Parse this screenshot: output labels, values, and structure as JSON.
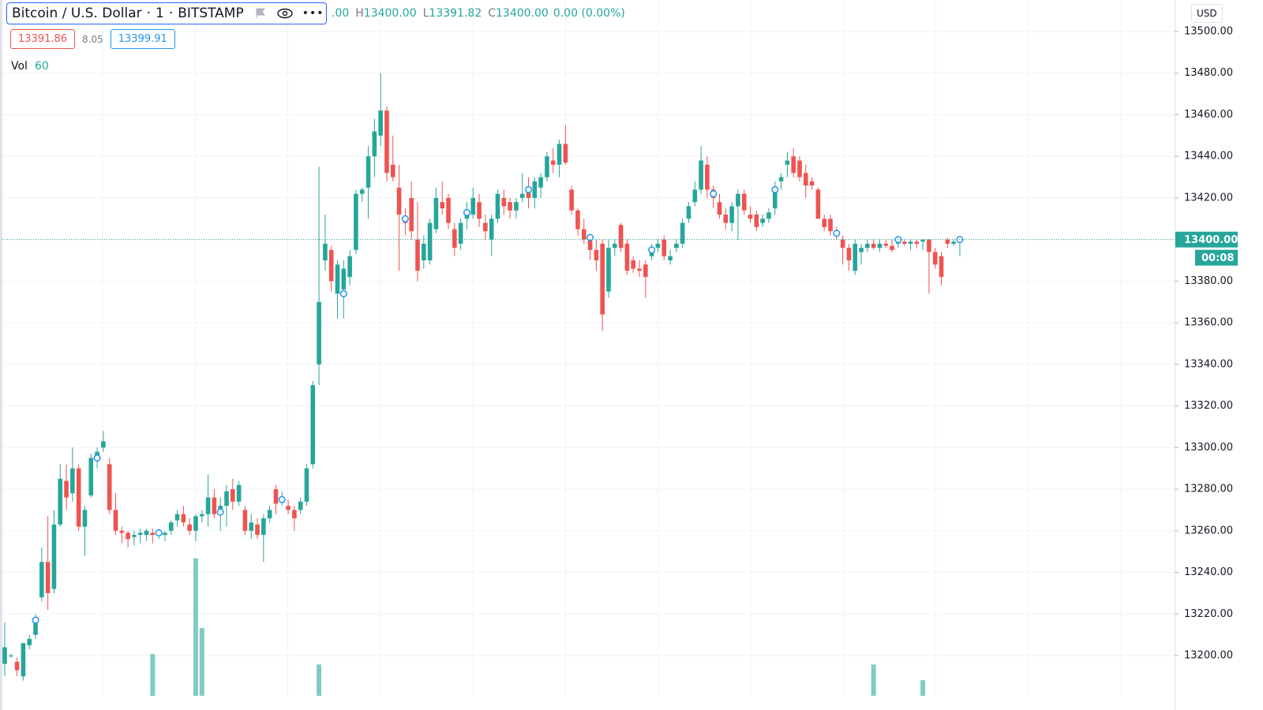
{
  "chart_data": {
    "type": "candlestick",
    "title": "Bitcoin / U.S. Dollar",
    "interval": "1",
    "exchange": "BITSTAMP",
    "legend": {
      "open_fragment": ".00",
      "high_label": "H",
      "high": "13400.00",
      "low_label": "L",
      "low": "13391.82",
      "close_label": "C",
      "close": "13400.00",
      "change": "0.00 (0.00%)"
    },
    "bid": "13391.86",
    "spread": "8.05",
    "ask": "13399.91",
    "volume_label": "Vol",
    "volume_value": "60",
    "currency": "USD",
    "up_color": "#26a69a",
    "down_color": "#ef5350",
    "volume_color": "#80cbc4",
    "marker_color": "#2196f3",
    "open": [
      13196,
      13200,
      13197,
      13190,
      13205,
      13210,
      13228,
      13245,
      13232,
      13263,
      13284,
      13278,
      13290,
      13262,
      13277,
      13294,
      13300,
      13292,
      13270,
      13260,
      13259,
      13257,
      13258,
      13258,
      13259,
      13258,
      13258,
      13260,
      13265,
      13268,
      13263,
      13260,
      13267,
      13268,
      13276,
      13268,
      13272,
      13280,
      13274,
      13270,
      13260,
      13263,
      13258,
      13266,
      13280,
      13275,
      13272,
      13270,
      13270,
      13274,
      13292,
      13340,
      13390,
      13395,
      13374,
      13376,
      13382,
      13395,
      13422,
      13425,
      13440,
      13450,
      13462,
      13436,
      13425,
      13410,
      13420,
      13400,
      13390,
      13390,
      13405,
      13418,
      13420,
      13405,
      13398,
      13410,
      13412,
      13418,
      13408,
      13400,
      13410,
      13420,
      13418,
      13414,
      13420,
      13424,
      13420,
      13425,
      13430,
      13438,
      13436,
      13446,
      13424,
      13414,
      13405,
      13400,
      13395,
      13398,
      13375,
      13396,
      13407,
      13398,
      13390,
      13386,
      13388,
      13392,
      13396,
      13400,
      13390,
      13396,
      13398,
      13410,
      13418,
      13424,
      13436,
      13424,
      13418,
      13412,
      13408,
      13416,
      13422,
      13412,
      13412,
      13408,
      13410,
      13415,
      13428,
      13436,
      13440,
      13438,
      13432,
      13428,
      13424,
      13410,
      13410,
      13404,
      13400,
      13396,
      13385,
      13394,
      13396,
      13398,
      13396,
      13398,
      13397,
      13398,
      13399,
      13398,
      13399,
      13399,
      13400,
      13394,
      13392,
      13400,
      13398,
      13399
    ],
    "high": [
      13216,
      13201,
      13199,
      13206,
      13210,
      13220,
      13252,
      13267,
      13270,
      13292,
      13292,
      13300,
      13292,
      13272,
      13297,
      13300,
      13308,
      13295,
      13278,
      13262,
      13260,
      13260,
      13261,
      13261,
      13261,
      13261,
      13260,
      13265,
      13270,
      13272,
      13266,
      13268,
      13270,
      13287,
      13280,
      13276,
      13282,
      13285,
      13284,
      13272,
      13268,
      13266,
      13268,
      13272,
      13282,
      13279,
      13275,
      13272,
      13276,
      13292,
      13332,
      13435,
      13412,
      13397,
      13390,
      13390,
      13395,
      13424,
      13425,
      13445,
      13458,
      13480,
      13464,
      13450,
      13436,
      13415,
      13428,
      13418,
      13402,
      13410,
      13425,
      13428,
      13422,
      13408,
      13410,
      13418,
      13425,
      13422,
      13412,
      13412,
      13424,
      13424,
      13420,
      13420,
      13432,
      13430,
      13430,
      13432,
      13442,
      13444,
      13448,
      13455,
      13426,
      13415,
      13410,
      13402,
      13400,
      13400,
      13400,
      13400,
      13408,
      13400,
      13392,
      13390,
      13390,
      13398,
      13400,
      13402,
      13395,
      13400,
      13410,
      13418,
      13428,
      13445,
      13440,
      13426,
      13422,
      13415,
      13418,
      13424,
      13424,
      13416,
      13414,
      13412,
      13415,
      13428,
      13432,
      13442,
      13444,
      13440,
      13436,
      13430,
      13425,
      13412,
      13412,
      13406,
      13402,
      13398,
      13400,
      13398,
      13400,
      13400,
      13400,
      13400,
      13400,
      13400,
      13400,
      13400,
      13400,
      13400,
      13400,
      13396,
      13394,
      13401,
      13400,
      13400
    ],
    "low": [
      13190,
      13199,
      13190,
      13188,
      13203,
      13208,
      13226,
      13222,
      13230,
      13262,
      13270,
      13274,
      13260,
      13248,
      13276,
      13290,
      13298,
      13268,
      13258,
      13254,
      13252,
      13253,
      13254,
      13255,
      13254,
      13256,
      13255,
      13258,
      13262,
      13262,
      13258,
      13255,
      13264,
      13262,
      13266,
      13260,
      13262,
      13270,
      13272,
      13258,
      13256,
      13256,
      13245,
      13264,
      13268,
      13272,
      13268,
      13260,
      13268,
      13272,
      13290,
      13330,
      13385,
      13375,
      13362,
      13362,
      13378,
      13393,
      13418,
      13410,
      13430,
      13445,
      13428,
      13428,
      13385,
      13402,
      13400,
      13380,
      13386,
      13388,
      13403,
      13412,
      13405,
      13392,
      13395,
      13405,
      13410,
      13406,
      13400,
      13392,
      13408,
      13412,
      13410,
      13410,
      13418,
      13415,
      13415,
      13420,
      13428,
      13432,
      13430,
      13436,
      13412,
      13402,
      13398,
      13390,
      13385,
      13356,
      13372,
      13392,
      13394,
      13383,
      13384,
      13382,
      13372,
      13390,
      13394,
      13390,
      13388,
      13394,
      13396,
      13408,
      13416,
      13422,
      13420,
      13415,
      13410,
      13405,
      13404,
      13400,
      13412,
      13408,
      13404,
      13406,
      13408,
      13412,
      13424,
      13430,
      13430,
      13428,
      13420,
      13424,
      13410,
      13404,
      13402,
      13400,
      13388,
      13385,
      13383,
      13388,
      13394,
      13395,
      13394,
      13396,
      13394,
      13396,
      13397,
      13395,
      13396,
      13395,
      13374,
      13386,
      13378,
      13396,
      13397,
      13392
    ],
    "close": [
      13204,
      13200,
      13193,
      13206,
      13208,
      13217,
      13245,
      13230,
      13263,
      13285,
      13276,
      13290,
      13262,
      13270,
      13295,
      13298,
      13303,
      13270,
      13260,
      13259,
      13256,
      13258,
      13259,
      13260,
      13258,
      13260,
      13259,
      13264,
      13268,
      13264,
      13260,
      13267,
      13268,
      13276,
      13268,
      13272,
      13279,
      13274,
      13282,
      13260,
      13264,
      13258,
      13266,
      13270,
      13273,
      13276,
      13270,
      13266,
      13274,
      13290,
      13330,
      13370,
      13398,
      13380,
      13388,
      13386,
      13392,
      13422,
      13424,
      13440,
      13452,
      13462,
      13432,
      13430,
      13412,
      13408,
      13404,
      13385,
      13398,
      13408,
      13420,
      13415,
      13408,
      13396,
      13408,
      13412,
      13420,
      13410,
      13404,
      13410,
      13422,
      13416,
      13414,
      13418,
      13422,
      13420,
      13428,
      13430,
      13440,
      13436,
      13446,
      13437,
      13414,
      13405,
      13400,
      13395,
      13390,
      13364,
      13396,
      13398,
      13396,
      13385,
      13386,
      13385,
      13382,
      13396,
      13398,
      13392,
      13392,
      13398,
      13408,
      13416,
      13424,
      13438,
      13424,
      13420,
      13412,
      13408,
      13416,
      13422,
      13414,
      13410,
      13406,
      13410,
      13413,
      13425,
      13430,
      13438,
      13432,
      13430,
      13426,
      13426,
      13410,
      13406,
      13404,
      13402,
      13396,
      13390,
      13398,
      13396,
      13398,
      13396,
      13398,
      13397,
      13395,
      13399,
      13398,
      13399,
      13398,
      13400,
      13394,
      13388,
      13382,
      13398,
      13399,
      13400
    ],
    "markers": [
      {
        "index": 5,
        "value": 13217
      },
      {
        "index": 15,
        "value": 13295
      },
      {
        "index": 25,
        "value": 13259
      },
      {
        "index": 35,
        "value": 13269
      },
      {
        "index": 45,
        "value": 13275
      },
      {
        "index": 55,
        "value": 13374
      },
      {
        "index": 65,
        "value": 13410
      },
      {
        "index": 75,
        "value": 13413
      },
      {
        "index": 85,
        "value": 13424
      },
      {
        "index": 95,
        "value": 13401
      },
      {
        "index": 105,
        "value": 13395
      },
      {
        "index": 115,
        "value": 13422
      },
      {
        "index": 125,
        "value": 13424
      },
      {
        "index": 135,
        "value": 13403
      },
      {
        "index": 145,
        "value": 13400
      },
      {
        "index": 155,
        "value": 13400
      }
    ],
    "volume": [
      {
        "index": 24,
        "value": 24
      },
      {
        "index": 31,
        "value": 79
      },
      {
        "index": 32,
        "value": 39
      },
      {
        "index": 51,
        "value": 18
      },
      {
        "index": 141,
        "value": 18
      },
      {
        "index": 149,
        "value": 9
      }
    ],
    "volume_ylim": [
      0,
      400
    ],
    "ylim": [
      13180.66,
      13515.17
    ],
    "yticks": [
      {
        "value": 13200,
        "label": "13200.00"
      },
      {
        "value": 13220,
        "label": "13220.00"
      },
      {
        "value": 13240,
        "label": "13240.00"
      },
      {
        "value": 13260,
        "label": "13260.00"
      },
      {
        "value": 13280,
        "label": "13280.00"
      },
      {
        "value": 13300,
        "label": "13300.00"
      },
      {
        "value": 13320,
        "label": "13320.00"
      },
      {
        "value": 13340,
        "label": "13340.00"
      },
      {
        "value": 13360,
        "label": "13360.00"
      },
      {
        "value": 13380,
        "label": "13380.00"
      },
      {
        "value": 13400,
        "label": "13400.00"
      },
      {
        "value": 13420,
        "label": "13420.00"
      },
      {
        "value": 13440,
        "label": "13440.00"
      },
      {
        "value": 13460,
        "label": "13460.00"
      },
      {
        "value": 13480,
        "label": "13480.00"
      },
      {
        "value": 13500,
        "label": "13500.00"
      }
    ],
    "last_price": {
      "value": 13400,
      "label": "13400.00"
    },
    "countdown": "00:08",
    "grid": true
  }
}
